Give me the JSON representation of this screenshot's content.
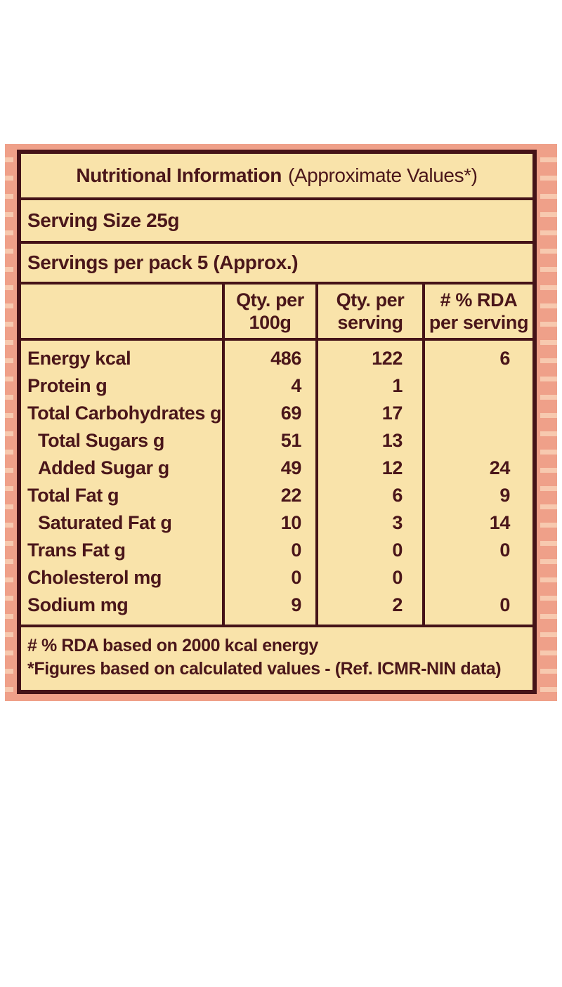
{
  "panel": {
    "title_bold": "Nutritional Information",
    "title_suffix": "(Approximate Values*)",
    "serving_size": "Serving Size 25g",
    "servings_per_pack": "Servings per pack 5 (Approx.)",
    "footnotes": [
      "# % RDA based on 2000 kcal energy",
      "*Figures based on calculated values - (Ref. ICMR-NIN data)"
    ]
  },
  "table": {
    "headers": [
      {
        "line1": "",
        "line2": ""
      },
      {
        "line1": "Qty. per",
        "line2": "100g"
      },
      {
        "line1": "Qty. per",
        "line2": "serving"
      },
      {
        "line1": "# % RDA",
        "line2": "per serving"
      }
    ],
    "rows": [
      {
        "label": "Energy kcal",
        "indent": false,
        "per100": "486",
        "perServing": "122",
        "rda": "6"
      },
      {
        "label": "Protein g",
        "indent": false,
        "per100": "4",
        "perServing": "1",
        "rda": ""
      },
      {
        "label": "Total Carbohydrates g",
        "indent": false,
        "per100": "69",
        "perServing": "17",
        "rda": ""
      },
      {
        "label": "Total Sugars g",
        "indent": true,
        "per100": "51",
        "perServing": "13",
        "rda": ""
      },
      {
        "label": "Added Sugar g",
        "indent": true,
        "per100": "49",
        "perServing": "12",
        "rda": "24"
      },
      {
        "label": "Total Fat g",
        "indent": false,
        "per100": "22",
        "perServing": "6",
        "rda": "9"
      },
      {
        "label": "Saturated Fat g",
        "indent": true,
        "per100": "10",
        "perServing": "3",
        "rda": "14"
      },
      {
        "label": "Trans Fat g",
        "indent": false,
        "per100": "0",
        "perServing": "0",
        "rda": "0"
      },
      {
        "label": "Cholesterol mg",
        "indent": false,
        "per100": "0",
        "perServing": "0",
        "rda": ""
      },
      {
        "label": "Sodium mg",
        "indent": false,
        "per100": "9",
        "perServing": "2",
        "rda": "0"
      }
    ]
  },
  "colors": {
    "cream": "#f9e3aa",
    "maroon": "#4a161a",
    "border": "#451318",
    "salmon": "#efa089",
    "salmon_light": "#f7c9af",
    "page_bg": "#ffffff"
  }
}
